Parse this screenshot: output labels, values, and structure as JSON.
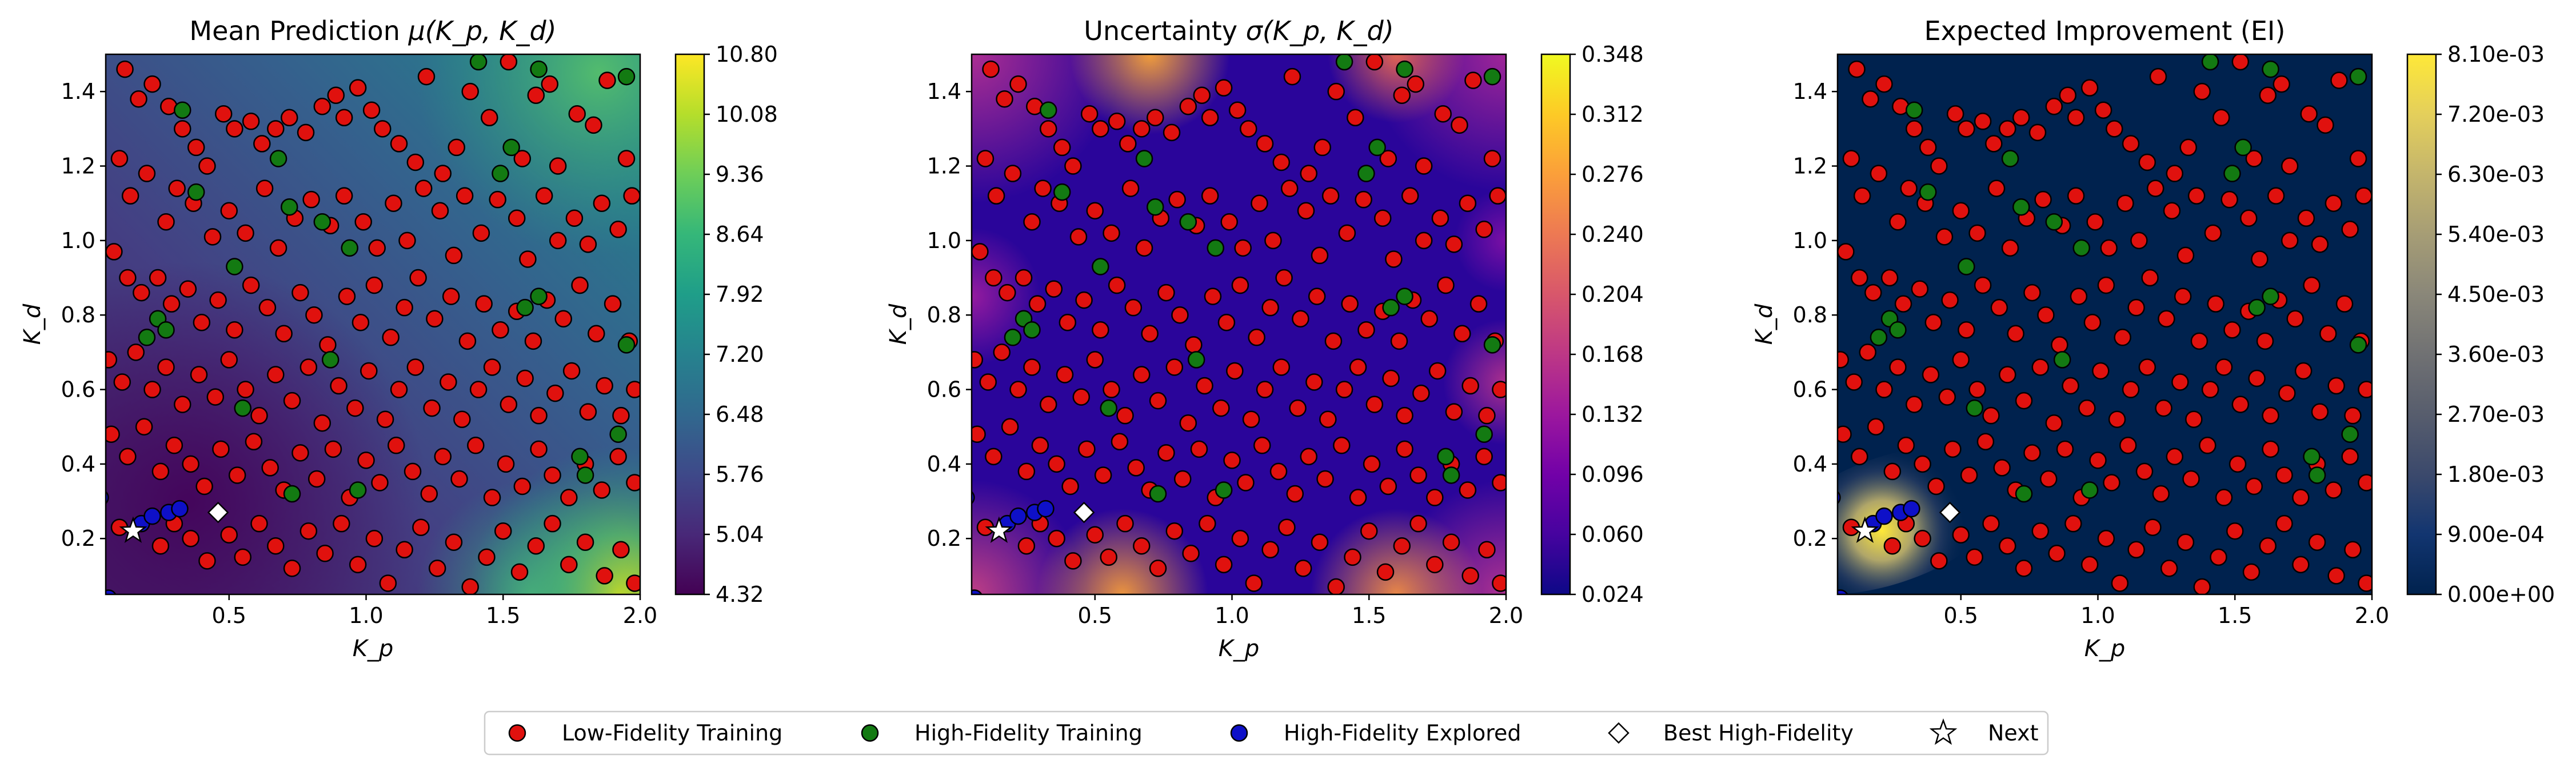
{
  "chart_data": [
    {
      "type": "heatmap",
      "title": "Mean Prediction μ(K_p, K_d)",
      "title_main": "Mean Prediction ",
      "title_sym": "μ",
      "title_args": "(K_p, K_d)",
      "xlabel": "K_p",
      "ylabel": "K_d",
      "xlim": [
        0.05,
        2.0
      ],
      "ylim": [
        0.05,
        1.5
      ],
      "colormap": "viridis",
      "colorbar_range": [
        4.32,
        10.8
      ],
      "colorbar_ticks": [
        "10.80",
        "10.08",
        "9.36",
        "8.64",
        "7.92",
        "7.20",
        "6.48",
        "5.76",
        "5.04",
        "4.32"
      ]
    },
    {
      "type": "heatmap",
      "title": "Uncertainty σ(K_p, K_d)",
      "title_main": "Uncertainty ",
      "title_sym": "σ",
      "title_args": "(K_p, K_d)",
      "xlabel": "K_p",
      "ylabel": "K_d",
      "xlim": [
        0.05,
        2.0
      ],
      "ylim": [
        0.05,
        1.5
      ],
      "colormap": "plasma",
      "colorbar_range": [
        0.024,
        0.348
      ],
      "colorbar_ticks": [
        "0.348",
        "0.312",
        "0.276",
        "0.240",
        "0.204",
        "0.168",
        "0.132",
        "0.096",
        "0.060",
        "0.024"
      ]
    },
    {
      "type": "heatmap",
      "title": "Expected Improvement (EI)",
      "title_main": "Expected Improvement (EI)",
      "title_sym": "",
      "title_args": "",
      "xlabel": "K_p",
      "ylabel": "K_d",
      "xlim": [
        0.05,
        2.0
      ],
      "ylim": [
        0.05,
        1.5
      ],
      "colormap": "cividis",
      "colorbar_range": [
        0.0,
        0.0081
      ],
      "colorbar_ticks": [
        "8.10e-03",
        "7.20e-03",
        "6.30e-03",
        "5.40e-03",
        "4.50e-03",
        "3.60e-03",
        "2.70e-03",
        "1.80e-03",
        "9.00e-04",
        "0.00e+00"
      ]
    }
  ],
  "shared_points": {
    "x_ticks": [
      "0.5",
      "1.0",
      "1.5",
      "2.0"
    ],
    "y_ticks": [
      "0.2",
      "0.4",
      "0.6",
      "0.8",
      "1.0",
      "1.2",
      "1.4"
    ],
    "low_fidelity_training": [
      [
        0.12,
        1.46
      ],
      [
        0.17,
        1.38
      ],
      [
        0.22,
        1.42
      ],
      [
        0.28,
        1.36
      ],
      [
        0.33,
        1.3
      ],
      [
        0.38,
        1.25
      ],
      [
        0.42,
        1.2
      ],
      [
        0.48,
        1.34
      ],
      [
        0.52,
        1.3
      ],
      [
        0.58,
        1.32
      ],
      [
        0.62,
        1.26
      ],
      [
        0.67,
        1.3
      ],
      [
        0.72,
        1.33
      ],
      [
        0.78,
        1.29
      ],
      [
        0.84,
        1.36
      ],
      [
        0.89,
        1.39
      ],
      [
        0.92,
        1.33
      ],
      [
        0.97,
        1.41
      ],
      [
        1.02,
        1.35
      ],
      [
        1.06,
        1.3
      ],
      [
        1.12,
        1.26
      ],
      [
        1.18,
        1.21
      ],
      [
        1.22,
        1.44
      ],
      [
        1.28,
        1.18
      ],
      [
        1.33,
        1.25
      ],
      [
        1.38,
        1.4
      ],
      [
        1.45,
        1.33
      ],
      [
        1.52,
        1.48
      ],
      [
        1.57,
        1.22
      ],
      [
        1.62,
        1.39
      ],
      [
        1.67,
        1.42
      ],
      [
        1.7,
        1.2
      ],
      [
        1.77,
        1.34
      ],
      [
        1.83,
        1.31
      ],
      [
        1.88,
        1.43
      ],
      [
        1.95,
        1.22
      ],
      [
        0.1,
        1.22
      ],
      [
        0.14,
        1.12
      ],
      [
        0.2,
        1.18
      ],
      [
        0.27,
        1.05
      ],
      [
        0.31,
        1.14
      ],
      [
        0.37,
        1.1
      ],
      [
        0.44,
        1.01
      ],
      [
        0.5,
        1.08
      ],
      [
        0.56,
        1.02
      ],
      [
        0.63,
        1.14
      ],
      [
        0.68,
        0.98
      ],
      [
        0.74,
        1.06
      ],
      [
        0.8,
        1.11
      ],
      [
        0.87,
        1.04
      ],
      [
        0.92,
        1.12
      ],
      [
        0.99,
        1.05
      ],
      [
        1.04,
        0.98
      ],
      [
        1.1,
        1.1
      ],
      [
        1.15,
        1.0
      ],
      [
        1.21,
        1.14
      ],
      [
        1.27,
        1.08
      ],
      [
        1.32,
        0.96
      ],
      [
        1.36,
        1.12
      ],
      [
        1.42,
        1.02
      ],
      [
        1.48,
        1.11
      ],
      [
        1.55,
        1.06
      ],
      [
        1.59,
        0.95
      ],
      [
        1.65,
        1.12
      ],
      [
        1.7,
        1.0
      ],
      [
        1.76,
        1.06
      ],
      [
        1.81,
        0.99
      ],
      [
        1.86,
        1.1
      ],
      [
        1.92,
        1.03
      ],
      [
        1.97,
        1.12
      ],
      [
        0.08,
        0.97
      ],
      [
        0.13,
        0.9
      ],
      [
        0.18,
        0.86
      ],
      [
        0.24,
        0.9
      ],
      [
        0.29,
        0.83
      ],
      [
        0.35,
        0.87
      ],
      [
        0.4,
        0.78
      ],
      [
        0.46,
        0.84
      ],
      [
        0.52,
        0.76
      ],
      [
        0.58,
        0.88
      ],
      [
        0.64,
        0.82
      ],
      [
        0.7,
        0.75
      ],
      [
        0.76,
        0.86
      ],
      [
        0.81,
        0.8
      ],
      [
        0.86,
        0.72
      ],
      [
        0.93,
        0.85
      ],
      [
        0.98,
        0.78
      ],
      [
        1.03,
        0.88
      ],
      [
        1.09,
        0.74
      ],
      [
        1.14,
        0.82
      ],
      [
        1.19,
        0.9
      ],
      [
        1.25,
        0.79
      ],
      [
        1.31,
        0.85
      ],
      [
        1.37,
        0.73
      ],
      [
        1.43,
        0.83
      ],
      [
        1.49,
        0.76
      ],
      [
        1.55,
        0.81
      ],
      [
        1.61,
        0.73
      ],
      [
        1.66,
        0.84
      ],
      [
        1.72,
        0.79
      ],
      [
        1.78,
        0.88
      ],
      [
        1.84,
        0.75
      ],
      [
        1.9,
        0.83
      ],
      [
        1.96,
        0.73
      ],
      [
        0.06,
        0.68
      ],
      [
        0.11,
        0.62
      ],
      [
        0.16,
        0.7
      ],
      [
        0.22,
        0.6
      ],
      [
        0.27,
        0.66
      ],
      [
        0.33,
        0.56
      ],
      [
        0.39,
        0.64
      ],
      [
        0.45,
        0.58
      ],
      [
        0.5,
        0.68
      ],
      [
        0.56,
        0.6
      ],
      [
        0.61,
        0.53
      ],
      [
        0.67,
        0.64
      ],
      [
        0.73,
        0.57
      ],
      [
        0.79,
        0.66
      ],
      [
        0.84,
        0.51
      ],
      [
        0.9,
        0.61
      ],
      [
        0.96,
        0.55
      ],
      [
        1.01,
        0.65
      ],
      [
        1.07,
        0.52
      ],
      [
        1.12,
        0.6
      ],
      [
        1.18,
        0.66
      ],
      [
        1.24,
        0.55
      ],
      [
        1.3,
        0.62
      ],
      [
        1.35,
        0.52
      ],
      [
        1.41,
        0.6
      ],
      [
        1.46,
        0.66
      ],
      [
        1.52,
        0.56
      ],
      [
        1.58,
        0.63
      ],
      [
        1.63,
        0.53
      ],
      [
        1.69,
        0.59
      ],
      [
        1.75,
        0.65
      ],
      [
        1.81,
        0.54
      ],
      [
        1.87,
        0.61
      ],
      [
        1.93,
        0.53
      ],
      [
        1.98,
        0.6
      ],
      [
        0.07,
        0.48
      ],
      [
        0.13,
        0.42
      ],
      [
        0.19,
        0.5
      ],
      [
        0.25,
        0.38
      ],
      [
        0.3,
        0.45
      ],
      [
        0.36,
        0.4
      ],
      [
        0.41,
        0.34
      ],
      [
        0.47,
        0.44
      ],
      [
        0.53,
        0.37
      ],
      [
        0.59,
        0.46
      ],
      [
        0.65,
        0.39
      ],
      [
        0.7,
        0.33
      ],
      [
        0.76,
        0.43
      ],
      [
        0.82,
        0.36
      ],
      [
        0.88,
        0.44
      ],
      [
        0.94,
        0.31
      ],
      [
        1.0,
        0.41
      ],
      [
        1.05,
        0.35
      ],
      [
        1.11,
        0.45
      ],
      [
        1.17,
        0.38
      ],
      [
        1.23,
        0.32
      ],
      [
        1.28,
        0.42
      ],
      [
        1.34,
        0.36
      ],
      [
        1.4,
        0.45
      ],
      [
        1.46,
        0.31
      ],
      [
        1.51,
        0.4
      ],
      [
        1.57,
        0.34
      ],
      [
        1.63,
        0.44
      ],
      [
        1.68,
        0.37
      ],
      [
        1.74,
        0.31
      ],
      [
        1.8,
        0.4
      ],
      [
        1.86,
        0.33
      ],
      [
        1.92,
        0.42
      ],
      [
        1.98,
        0.35
      ],
      [
        0.1,
        0.23
      ],
      [
        0.25,
        0.18
      ],
      [
        0.3,
        0.24
      ],
      [
        0.36,
        0.2
      ],
      [
        0.42,
        0.14
      ],
      [
        0.5,
        0.21
      ],
      [
        0.55,
        0.15
      ],
      [
        0.61,
        0.24
      ],
      [
        0.67,
        0.18
      ],
      [
        0.73,
        0.12
      ],
      [
        0.79,
        0.22
      ],
      [
        0.85,
        0.16
      ],
      [
        0.91,
        0.24
      ],
      [
        0.97,
        0.13
      ],
      [
        1.03,
        0.2
      ],
      [
        1.08,
        0.08
      ],
      [
        1.14,
        0.17
      ],
      [
        1.2,
        0.23
      ],
      [
        1.26,
        0.12
      ],
      [
        1.32,
        0.19
      ],
      [
        1.38,
        0.07
      ],
      [
        1.44,
        0.15
      ],
      [
        1.5,
        0.22
      ],
      [
        1.56,
        0.11
      ],
      [
        1.62,
        0.18
      ],
      [
        1.68,
        0.24
      ],
      [
        1.74,
        0.13
      ],
      [
        1.8,
        0.19
      ],
      [
        1.87,
        0.1
      ],
      [
        1.93,
        0.17
      ],
      [
        1.98,
        0.08
      ]
    ],
    "high_fidelity_training": [
      [
        0.33,
        1.35
      ],
      [
        0.68,
        1.22
      ],
      [
        0.72,
        1.09
      ],
      [
        0.84,
        1.05
      ],
      [
        1.41,
        1.48
      ],
      [
        1.53,
        1.25
      ],
      [
        1.63,
        1.46
      ],
      [
        1.95,
        1.44
      ],
      [
        1.49,
        1.18
      ],
      [
        0.38,
        1.13
      ],
      [
        0.52,
        0.93
      ],
      [
        0.24,
        0.79
      ],
      [
        0.27,
        0.76
      ],
      [
        0.2,
        0.74
      ],
      [
        0.87,
        0.68
      ],
      [
        0.94,
        0.98
      ],
      [
        1.63,
        0.85
      ],
      [
        1.58,
        0.82
      ],
      [
        0.55,
        0.55
      ],
      [
        0.97,
        0.33
      ],
      [
        0.73,
        0.32
      ],
      [
        1.78,
        0.42
      ],
      [
        1.8,
        0.37
      ],
      [
        1.95,
        0.72
      ],
      [
        1.92,
        0.48
      ]
    ],
    "high_fidelity_explored": [
      [
        0.03,
        0.31
      ],
      [
        0.18,
        0.24
      ],
      [
        0.22,
        0.26
      ],
      [
        0.28,
        0.27
      ],
      [
        0.32,
        0.28
      ],
      [
        0.06,
        0.04
      ]
    ],
    "best_high_fidelity": [
      [
        0.46,
        0.27
      ]
    ],
    "next": [
      [
        0.15,
        0.22
      ]
    ],
    "legend": {
      "placement": "bottom-center",
      "entries": [
        {
          "label": "Low-Fidelity Training",
          "marker": "circle",
          "color": "#e0110e"
        },
        {
          "label": "High-Fidelity Training",
          "marker": "circle",
          "color": "#137a12"
        },
        {
          "label": "High-Fidelity Explored",
          "marker": "circle",
          "color": "#0e10c8"
        },
        {
          "label": "Best High-Fidelity",
          "marker": "diamond",
          "color": "#ffffff"
        },
        {
          "label": "Next",
          "marker": "star",
          "color": "#ffffff"
        }
      ]
    }
  }
}
